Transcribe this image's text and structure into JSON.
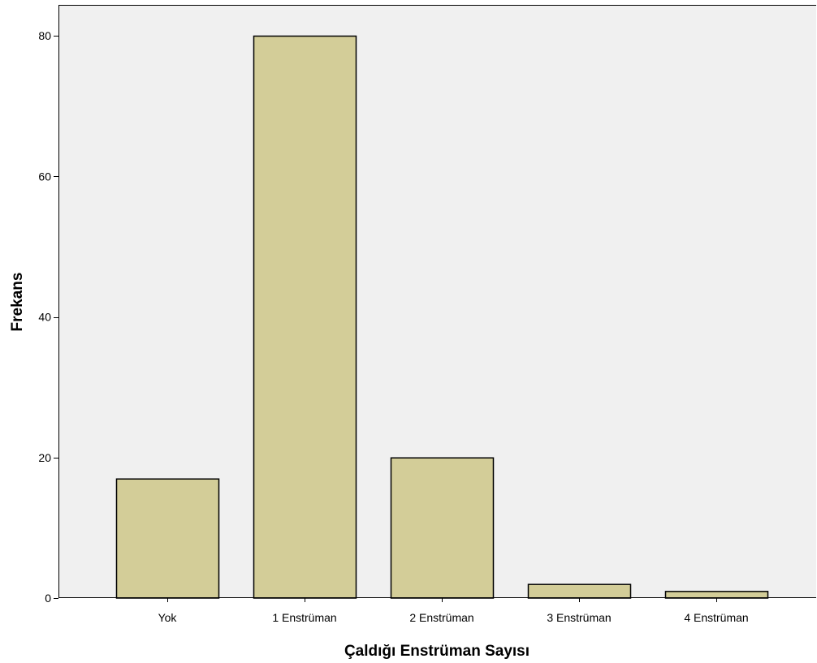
{
  "chart_data": {
    "type": "bar",
    "title": "",
    "xlabel": "Çaldığı Enstrüman Sayısı",
    "ylabel": "Frekans",
    "categories": [
      "Yok",
      "1 Enstrüman",
      "2 Enstrüman",
      "3 Enstrüman",
      "4 Enstrüman"
    ],
    "values": [
      17,
      80,
      20,
      2,
      1
    ],
    "ylim": [
      0,
      84
    ],
    "yticks": [
      0,
      20,
      40,
      60,
      80
    ],
    "grid": false,
    "legend": "none",
    "colors": {
      "bar_fill": "#d3cd98",
      "bar_stroke": "#000000",
      "plot_background": "#f0f0f0",
      "page_background": "#ffffff",
      "axis": "#000000"
    }
  }
}
